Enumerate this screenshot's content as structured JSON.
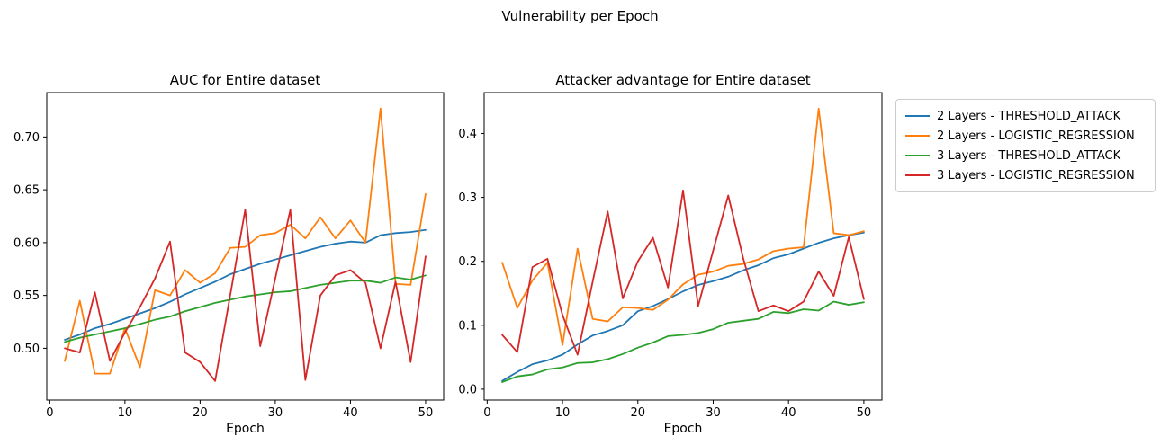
{
  "figure": {
    "suptitle": "Vulnerability per Epoch",
    "background": "#ffffff"
  },
  "legend": {
    "position": "outside-upper-right",
    "items": [
      {
        "label": "2 Layers - THRESHOLD_ATTACK",
        "color": "#1f77b4"
      },
      {
        "label": "2 Layers - LOGISTIC_REGRESSION",
        "color": "#ff7f0e"
      },
      {
        "label": "3 Layers - THRESHOLD_ATTACK",
        "color": "#2ca02c"
      },
      {
        "label": "3 Layers - LOGISTIC_REGRESSION",
        "color": "#d62728"
      }
    ]
  },
  "chart_data": [
    {
      "type": "line",
      "title": "AUC for Entire dataset",
      "xlabel": "Epoch",
      "ylabel": "",
      "grid": false,
      "x": [
        2,
        4,
        6,
        8,
        10,
        12,
        14,
        16,
        18,
        20,
        22,
        24,
        26,
        28,
        30,
        32,
        34,
        36,
        38,
        40,
        42,
        44,
        46,
        48,
        50
      ],
      "xlim": [
        -0.4,
        52.4
      ],
      "ylim": [
        0.451,
        0.742
      ],
      "xticks": {
        "values": [
          0,
          10,
          20,
          30,
          40,
          50
        ],
        "labels": [
          "0",
          "10",
          "20",
          "30",
          "40",
          "50"
        ]
      },
      "yticks": {
        "values": [
          0.5,
          0.55,
          0.6,
          0.65,
          0.7
        ],
        "labels": [
          "0.50",
          "0.55",
          "0.60",
          "0.65",
          "0.70"
        ]
      },
      "series": [
        {
          "name": "2 Layers - THRESHOLD_ATTACK",
          "color": "#1f77b4",
          "values": [
            0.508,
            0.513,
            0.519,
            0.523,
            0.528,
            0.533,
            0.538,
            0.544,
            0.551,
            0.557,
            0.563,
            0.57,
            0.575,
            0.58,
            0.584,
            0.588,
            0.592,
            0.596,
            0.599,
            0.601,
            0.6,
            0.607,
            0.609,
            0.61,
            0.612
          ]
        },
        {
          "name": "2 Layers - LOGISTIC_REGRESSION",
          "color": "#ff7f0e",
          "values": [
            0.488,
            0.545,
            0.476,
            0.476,
            0.519,
            0.482,
            0.555,
            0.55,
            0.574,
            0.562,
            0.571,
            0.595,
            0.596,
            0.607,
            0.609,
            0.617,
            0.604,
            0.624,
            0.604,
            0.621,
            0.6,
            0.727,
            0.561,
            0.56,
            0.646
          ]
        },
        {
          "name": "3 Layers - THRESHOLD_ATTACK",
          "color": "#2ca02c",
          "values": [
            0.506,
            0.51,
            0.513,
            0.516,
            0.519,
            0.523,
            0.527,
            0.53,
            0.535,
            0.539,
            0.543,
            0.546,
            0.549,
            0.551,
            0.553,
            0.554,
            0.557,
            0.56,
            0.562,
            0.564,
            0.564,
            0.562,
            0.567,
            0.565,
            0.569
          ]
        },
        {
          "name": "3 Layers - LOGISTIC_REGRESSION",
          "color": "#d62728",
          "values": [
            0.5,
            0.496,
            0.553,
            0.488,
            0.515,
            0.539,
            0.566,
            0.601,
            0.496,
            0.487,
            0.469,
            0.55,
            0.631,
            0.502,
            0.566,
            0.631,
            0.47,
            0.55,
            0.569,
            0.574,
            0.562,
            0.5,
            0.563,
            0.487,
            0.587
          ]
        }
      ]
    },
    {
      "type": "line",
      "title": "Attacker advantage for Entire dataset",
      "xlabel": "Epoch",
      "ylabel": "",
      "grid": false,
      "x": [
        2,
        4,
        6,
        8,
        10,
        12,
        14,
        16,
        18,
        20,
        22,
        24,
        26,
        28,
        30,
        32,
        34,
        36,
        38,
        40,
        42,
        44,
        46,
        48,
        50
      ],
      "xlim": [
        -0.4,
        52.4
      ],
      "ylim": [
        -0.017,
        0.464
      ],
      "xticks": {
        "values": [
          0,
          10,
          20,
          30,
          40,
          50
        ],
        "labels": [
          "0",
          "10",
          "20",
          "30",
          "40",
          "50"
        ]
      },
      "yticks": {
        "values": [
          0.0,
          0.1,
          0.2,
          0.3,
          0.4
        ],
        "labels": [
          "0.0",
          "0.1",
          "0.2",
          "0.3",
          "0.4"
        ]
      },
      "series": [
        {
          "name": "2 Layers - THRESHOLD_ATTACK",
          "color": "#1f77b4",
          "values": [
            0.013,
            0.027,
            0.039,
            0.045,
            0.054,
            0.07,
            0.084,
            0.091,
            0.1,
            0.122,
            0.13,
            0.141,
            0.153,
            0.163,
            0.169,
            0.176,
            0.186,
            0.194,
            0.205,
            0.211,
            0.22,
            0.229,
            0.236,
            0.241,
            0.245
          ]
        },
        {
          "name": "2 Layers - LOGISTIC_REGRESSION",
          "color": "#ff7f0e",
          "values": [
            0.198,
            0.127,
            0.17,
            0.198,
            0.069,
            0.22,
            0.11,
            0.106,
            0.128,
            0.127,
            0.124,
            0.14,
            0.164,
            0.179,
            0.184,
            0.193,
            0.196,
            0.203,
            0.216,
            0.22,
            0.222,
            0.439,
            0.244,
            0.241,
            0.247
          ]
        },
        {
          "name": "3 Layers - THRESHOLD_ATTACK",
          "color": "#2ca02c",
          "values": [
            0.011,
            0.02,
            0.023,
            0.031,
            0.034,
            0.041,
            0.042,
            0.047,
            0.055,
            0.065,
            0.073,
            0.083,
            0.085,
            0.088,
            0.094,
            0.104,
            0.107,
            0.11,
            0.121,
            0.119,
            0.125,
            0.123,
            0.137,
            0.132,
            0.136
          ]
        },
        {
          "name": "3 Layers - LOGISTIC_REGRESSION",
          "color": "#d62728",
          "values": [
            0.085,
            0.058,
            0.191,
            0.204,
            0.116,
            0.054,
            0.168,
            0.278,
            0.142,
            0.2,
            0.237,
            0.159,
            0.311,
            0.13,
            0.217,
            0.303,
            0.204,
            0.122,
            0.131,
            0.122,
            0.137,
            0.184,
            0.146,
            0.238,
            0.141
          ]
        }
      ]
    }
  ]
}
